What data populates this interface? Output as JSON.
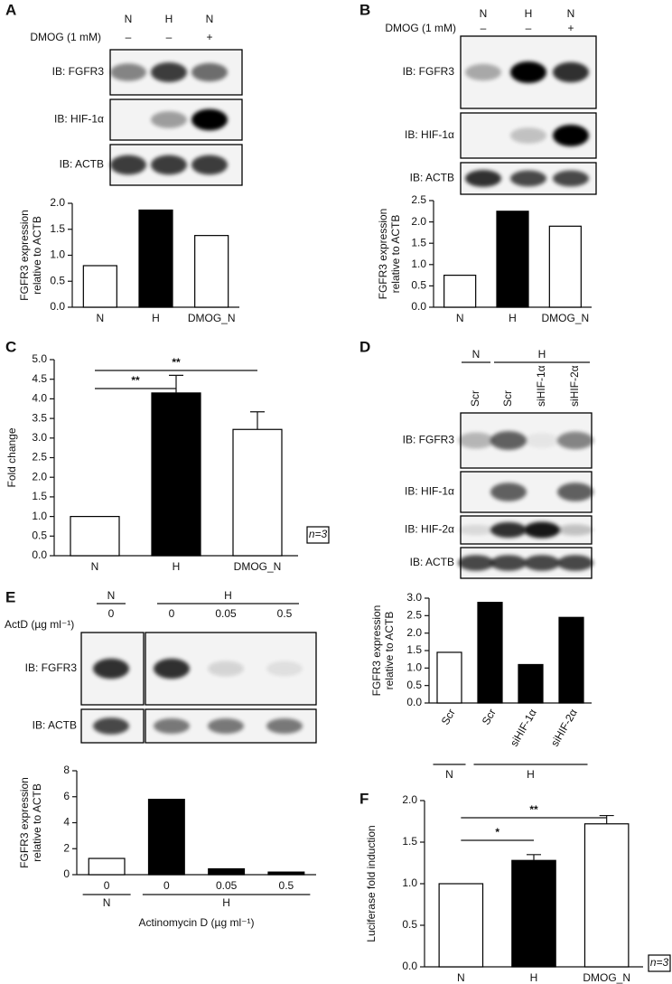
{
  "chart_data": [
    {
      "panel": "A",
      "type": "bar",
      "lane_groups": [
        {
          "label": "N"
        },
        {
          "label": "H"
        },
        {
          "label": "N"
        }
      ],
      "treatment_label": "DMOG (1 mM)",
      "treatments": [
        "–",
        "–",
        "+"
      ],
      "blots": [
        "IB: FGFR3",
        "IB: HIF-1α",
        "IB: ACTB"
      ],
      "ylabel": [
        "FGFR3 expression",
        "relative to ACTB"
      ],
      "categories": [
        "N",
        "H",
        "DMOG_N"
      ],
      "values": [
        0.8,
        1.87,
        1.38
      ],
      "colors": [
        "#ffffff",
        "#000000",
        "#ffffff"
      ],
      "ylim": [
        0,
        2
      ],
      "yticks": [
        {
          "value": 0,
          "label": "0.0"
        },
        {
          "value": 0.5,
          "label": "0.5"
        },
        {
          "value": 1,
          "label": "1.0"
        },
        {
          "value": 1.5,
          "label": "1.5"
        },
        {
          "value": 2,
          "label": "2.0"
        }
      ]
    },
    {
      "panel": "B",
      "type": "bar",
      "lane_groups": [
        {
          "label": "N"
        },
        {
          "label": "H"
        },
        {
          "label": "N"
        }
      ],
      "treatment_label": "DMOG (1 mM)",
      "treatments": [
        "–",
        "–",
        "+"
      ],
      "blots": [
        "IB: FGFR3",
        "IB: HIF-1α",
        "IB: ACTB"
      ],
      "ylabel": [
        "FGFR3 expression",
        "relative to ACTB"
      ],
      "categories": [
        "N",
        "H",
        "DMOG_N"
      ],
      "values": [
        0.75,
        2.25,
        1.9
      ],
      "colors": [
        "#ffffff",
        "#000000",
        "#ffffff"
      ],
      "ylim": [
        0,
        2.5
      ],
      "yticks": [
        {
          "value": 0,
          "label": "0.0"
        },
        {
          "value": 0.5,
          "label": "0.5"
        },
        {
          "value": 1,
          "label": "1.0"
        },
        {
          "value": 1.5,
          "label": "1.5"
        },
        {
          "value": 2,
          "label": "2.0"
        },
        {
          "value": 2.5,
          "label": "2.5"
        }
      ]
    },
    {
      "panel": "C",
      "type": "bar",
      "ylabel": [
        "Fold change"
      ],
      "categories": [
        "N",
        "H",
        "DMOG_N"
      ],
      "values": [
        1.0,
        4.15,
        3.22
      ],
      "errors": [
        0,
        0.45,
        0.45
      ],
      "colors": [
        "#ffffff",
        "#000000",
        "#ffffff"
      ],
      "annotations": [
        {
          "label": "**",
          "between": [
            "N",
            "H"
          ]
        },
        {
          "label": "**",
          "between": [
            "N",
            "DMOG_N"
          ]
        }
      ],
      "note": "n=3",
      "ylim": [
        0,
        5
      ],
      "yticks": [
        {
          "value": 0,
          "label": "0.0"
        },
        {
          "value": 0.5,
          "label": "0.5"
        },
        {
          "value": 1,
          "label": "1.0"
        },
        {
          "value": 1.5,
          "label": "1.5"
        },
        {
          "value": 2,
          "label": "2.0"
        },
        {
          "value": 2.5,
          "label": "2.5"
        },
        {
          "value": 3,
          "label": "3.0"
        },
        {
          "value": 3.5,
          "label": "3.5"
        },
        {
          "value": 4,
          "label": "4.0"
        },
        {
          "value": 4.5,
          "label": "4.5"
        },
        {
          "value": 5,
          "label": "5.0"
        }
      ]
    },
    {
      "panel": "D",
      "type": "bar",
      "lane_groups": [
        {
          "label": "N"
        },
        {
          "label": "H"
        }
      ],
      "blots": [
        "IB: FGFR3",
        "IB: HIF-1α",
        "IB: HIF-2α",
        "IB: ACTB"
      ],
      "ylabel": [
        "FGFR3 expression",
        "relative to ACTB"
      ],
      "categories": [
        "Scr",
        "Scr",
        "siHIF-1α",
        "siHIF-2α"
      ],
      "values": [
        1.45,
        2.88,
        1.1,
        2.45
      ],
      "colors": [
        "#ffffff",
        "#000000",
        "#000000",
        "#000000"
      ],
      "ylim": [
        0,
        3
      ],
      "yticks": [
        {
          "value": 0,
          "label": "0.0"
        },
        {
          "value": 0.5,
          "label": "0.5"
        },
        {
          "value": 1,
          "label": "1.0"
        },
        {
          "value": 1.5,
          "label": "1.5"
        },
        {
          "value": 2,
          "label": "2.0"
        },
        {
          "value": 2.5,
          "label": "2.5"
        },
        {
          "value": 3,
          "label": "3.0"
        }
      ]
    },
    {
      "panel": "E",
      "type": "bar",
      "lane_groups": [
        {
          "label": "N"
        },
        {
          "label": "H"
        }
      ],
      "treatment_label": "ActD (µg ml⁻¹)",
      "blots": [
        "IB: FGFR3",
        "IB: ACTB"
      ],
      "ylabel": [
        "FGFR3 expression",
        "relative to ACTB"
      ],
      "xlabel": "Actinomycin D (µg ml⁻¹)",
      "categories": [
        "0",
        "0",
        "0.05",
        "0.5"
      ],
      "values": [
        1.25,
        5.8,
        0.45,
        0.2
      ],
      "colors": [
        "#ffffff",
        "#000000",
        "#000000",
        "#000000"
      ],
      "ylim": [
        0,
        8
      ],
      "yticks": [
        0,
        2,
        4,
        6,
        8
      ]
    },
    {
      "panel": "F",
      "type": "bar",
      "ylabel": [
        "Luciferase fold induction"
      ],
      "categories": [
        "N",
        "H",
        "DMOG_N"
      ],
      "values": [
        1.0,
        1.28,
        1.72
      ],
      "errors": [
        0,
        0.07,
        0.1
      ],
      "colors": [
        "#ffffff",
        "#000000",
        "#ffffff"
      ],
      "annotations": [
        {
          "label": "*",
          "between": [
            "N",
            "H"
          ]
        },
        {
          "label": "**",
          "between": [
            "N",
            "DMOG_N"
          ]
        }
      ],
      "note": "n=3",
      "ylim": [
        0,
        2
      ],
      "yticks": [
        {
          "value": 0,
          "label": "0.0"
        },
        {
          "value": 0.5,
          "label": "0.5"
        },
        {
          "value": 1,
          "label": "1.0"
        },
        {
          "value": 1.5,
          "label": "1.5"
        },
        {
          "value": 2,
          "label": "2.0"
        }
      ]
    }
  ]
}
